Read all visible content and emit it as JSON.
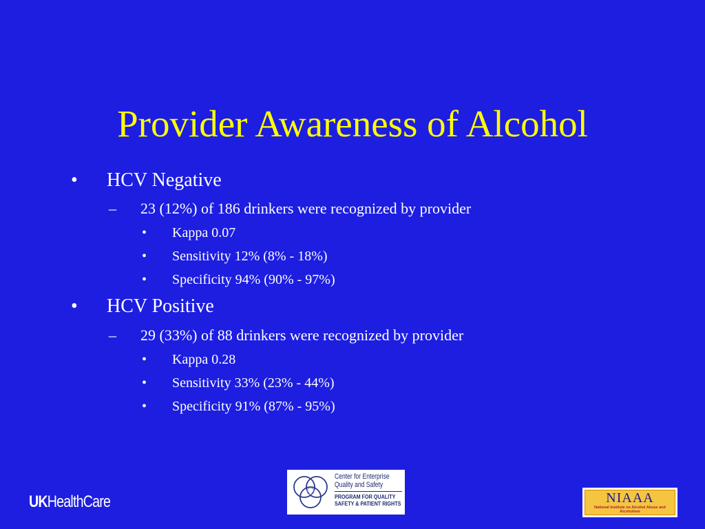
{
  "slide": {
    "title": "Provider Awareness of Alcohol",
    "bullet_marker": "•",
    "dash_marker": "–",
    "sections": [
      {
        "heading": "HCV Negative",
        "subpoint": "23 (12%) of 186 drinkers were recognized by provider",
        "details": [
          "Kappa 0.07",
          "Sensitivity 12% (8% - 18%)",
          "Specificity 94% (90% - 97%)"
        ]
      },
      {
        "heading": "HCV Positive",
        "subpoint": "29 (33%) of 88 drinkers were recognized by provider",
        "details": [
          "Kappa 0.28",
          "Sensitivity 33% (23% - 44%)",
          "Specificity 91% (87% - 95%)"
        ]
      }
    ]
  },
  "footer": {
    "uk_logo": {
      "uk": "UK",
      "healthcare": "HealthCare"
    },
    "cqs_logo": {
      "line1": "Center for Enterprise",
      "line2": "Quality and Safety",
      "line3": "PROGRAM FOR QUALITY",
      "line4": "SAFETY & PATIENT RIGHTS"
    },
    "niaaa_logo": {
      "title": "NIAAA",
      "subtitle": "National Institute on Alcohol Abuse and Alcoholism"
    }
  },
  "colors": {
    "background": "#1d1ee0",
    "title": "#ffff00",
    "body_text": "#ffffff"
  }
}
